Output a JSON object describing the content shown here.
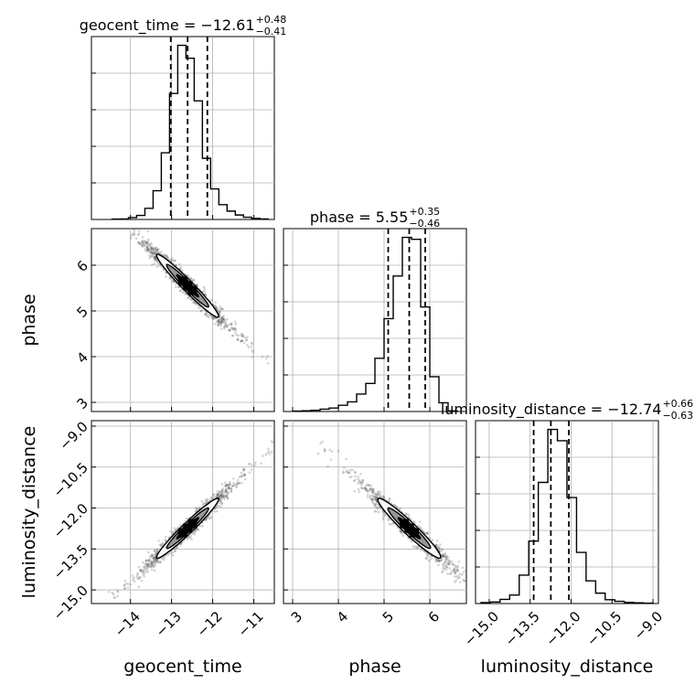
{
  "chart_data": {
    "type": "corner",
    "parameters": [
      {
        "name": "geocent_time",
        "median": "−12.61",
        "upper": "+0.48",
        "lower": "−0.41"
      },
      {
        "name": "phase",
        "median": "5.55",
        "upper": "+0.35",
        "lower": "−0.46"
      },
      {
        "name": "luminosity_distance",
        "median": "−12.74",
        "upper": "+0.66",
        "lower": "−0.63"
      }
    ],
    "ranges": {
      "geocent_time": [
        -14.95,
        -10.5
      ],
      "phase": [
        2.8,
        6.8
      ],
      "luminosity_distance": [
        -15.5,
        -8.8
      ]
    },
    "ticks": {
      "geocent_time": [
        -14,
        -13,
        -12,
        -11
      ],
      "phase": [
        3,
        4,
        5,
        6
      ],
      "luminosity_distance": [
        -15.0,
        -13.5,
        -12.0,
        -10.5,
        -9.0
      ]
    },
    "tick_labels": {
      "geocent_time": [
        "−14",
        "−13",
        "−12",
        "−11"
      ],
      "phase": [
        "3",
        "4",
        "5",
        "6"
      ],
      "luminosity_distance": [
        "−15.0",
        "−13.5",
        "−12.0",
        "−10.5",
        "−9.0"
      ]
    },
    "histograms": {
      "geocent_time": {
        "bin_edges": [
          -14.45,
          -14.25,
          -14.05,
          -13.85,
          -13.65,
          -13.45,
          -13.25,
          -13.05,
          -12.85,
          -12.65,
          -12.45,
          -12.25,
          -12.05,
          -11.85,
          -11.65,
          -11.45,
          -11.25,
          -11.05,
          -10.85,
          -10.65
        ],
        "counts": [
          2,
          3,
          10,
          22,
          60,
          155,
          360,
          680,
          940,
          870,
          640,
          330,
          165,
          80,
          45,
          24,
          12,
          6,
          3
        ]
      },
      "phase": {
        "bin_edges": [
          3.0,
          3.2,
          3.4,
          3.6,
          3.8,
          4.0,
          4.2,
          4.4,
          4.6,
          4.8,
          5.0,
          5.2,
          5.4,
          5.6,
          5.8,
          6.0,
          6.2,
          6.4,
          6.6
        ],
        "counts": [
          2,
          4,
          6,
          12,
          18,
          32,
          50,
          90,
          145,
          275,
          480,
          700,
          900,
          890,
          540,
          180,
          45,
          3
        ]
      },
      "luminosity_distance": {
        "bin_edges": [
          -15.3,
          -14.95,
          -14.6,
          -14.25,
          -13.9,
          -13.55,
          -13.2,
          -12.85,
          -12.5,
          -12.15,
          -11.8,
          -11.45,
          -11.1,
          -10.75,
          -10.4,
          -10.05,
          -9.7,
          -9.35,
          -9.0
        ],
        "counts": [
          5,
          8,
          22,
          45,
          150,
          330,
          640,
          920,
          860,
          560,
          270,
          120,
          55,
          20,
          12,
          6,
          4,
          2
        ]
      }
    },
    "quantiles": {
      "geocent_time": [
        -13.02,
        -12.61,
        -12.13
      ],
      "phase": [
        5.09,
        5.55,
        5.9
      ],
      "luminosity_distance": [
        -13.37,
        -12.74,
        -12.08
      ]
    },
    "correlations": {
      "geocent_time|phase": -0.97,
      "geocent_time|luminosity_distance": 0.97,
      "phase|luminosity_distance": -0.96
    },
    "grid": true,
    "color": "#000000",
    "scatter_color": "#555555"
  }
}
